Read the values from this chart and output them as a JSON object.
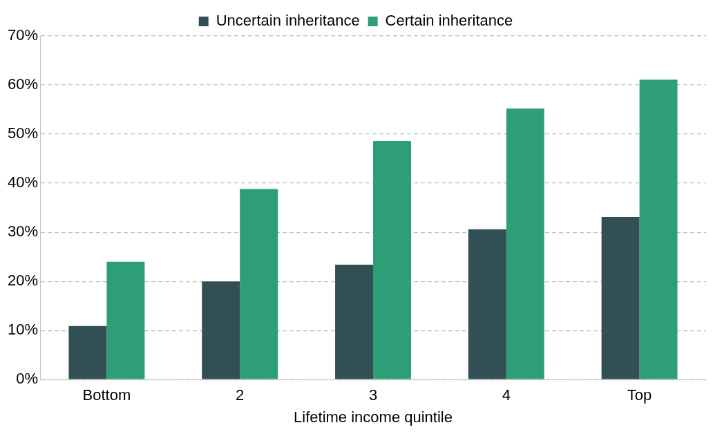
{
  "chart_data": {
    "type": "bar",
    "xlabel": "Lifetime income quintile",
    "categories": [
      "Bottom",
      "2",
      "3",
      "4",
      "Top"
    ],
    "series": [
      {
        "name": "Uncertain inheritance",
        "color": "#334f56",
        "values": [
          10.9,
          20.0,
          23.4,
          30.6,
          33.1
        ]
      },
      {
        "name": "Certain inheritance",
        "color": "#2e9e76",
        "values": [
          24.0,
          38.8,
          48.6,
          55.2,
          61.1
        ]
      }
    ],
    "ylim": [
      0,
      70
    ],
    "yticks": [
      {
        "value": 0,
        "label": "0%"
      },
      {
        "value": 10,
        "label": "10%"
      },
      {
        "value": 20,
        "label": "20%"
      },
      {
        "value": 30,
        "label": "30%"
      },
      {
        "value": 40,
        "label": "40%"
      },
      {
        "value": 50,
        "label": "50%"
      },
      {
        "value": 60,
        "label": "60%"
      },
      {
        "value": 70,
        "label": "70%"
      }
    ],
    "grid": "y",
    "legend": "top"
  }
}
